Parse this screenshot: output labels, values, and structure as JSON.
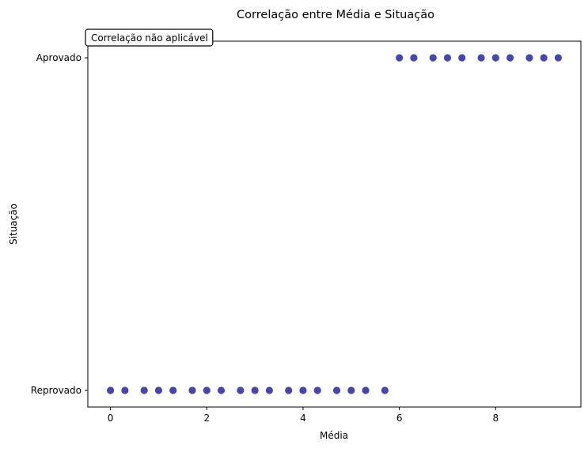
{
  "chart_data": {
    "type": "scatter",
    "title": "Correlação entre Média e Situação",
    "xlabel": "Média",
    "ylabel": "Situação",
    "xlim": [
      -0.47,
      9.77
    ],
    "x_ticks": [
      0,
      2,
      4,
      6,
      8
    ],
    "y_categories": [
      "Reprovado",
      "Aprovado"
    ],
    "grid": false,
    "annotation": "Correlação não aplicável",
    "marker_color": "#00008B",
    "series": [
      {
        "points": [
          {
            "x": 0.0,
            "y": "Reprovado"
          },
          {
            "x": 0.3,
            "y": "Reprovado"
          },
          {
            "x": 0.7,
            "y": "Reprovado"
          },
          {
            "x": 1.0,
            "y": "Reprovado"
          },
          {
            "x": 1.3,
            "y": "Reprovado"
          },
          {
            "x": 1.7,
            "y": "Reprovado"
          },
          {
            "x": 2.0,
            "y": "Reprovado"
          },
          {
            "x": 2.3,
            "y": "Reprovado"
          },
          {
            "x": 2.7,
            "y": "Reprovado"
          },
          {
            "x": 3.0,
            "y": "Reprovado"
          },
          {
            "x": 3.3,
            "y": "Reprovado"
          },
          {
            "x": 3.7,
            "y": "Reprovado"
          },
          {
            "x": 4.0,
            "y": "Reprovado"
          },
          {
            "x": 4.3,
            "y": "Reprovado"
          },
          {
            "x": 4.7,
            "y": "Reprovado"
          },
          {
            "x": 5.0,
            "y": "Reprovado"
          },
          {
            "x": 5.3,
            "y": "Reprovado"
          },
          {
            "x": 5.7,
            "y": "Reprovado"
          },
          {
            "x": 6.0,
            "y": "Aprovado"
          },
          {
            "x": 6.3,
            "y": "Aprovado"
          },
          {
            "x": 6.7,
            "y": "Aprovado"
          },
          {
            "x": 7.0,
            "y": "Aprovado"
          },
          {
            "x": 7.3,
            "y": "Aprovado"
          },
          {
            "x": 7.7,
            "y": "Aprovado"
          },
          {
            "x": 8.0,
            "y": "Aprovado"
          },
          {
            "x": 8.3,
            "y": "Aprovado"
          },
          {
            "x": 8.7,
            "y": "Aprovado"
          },
          {
            "x": 9.0,
            "y": "Aprovado"
          },
          {
            "x": 9.3,
            "y": "Aprovado"
          }
        ]
      }
    ]
  }
}
